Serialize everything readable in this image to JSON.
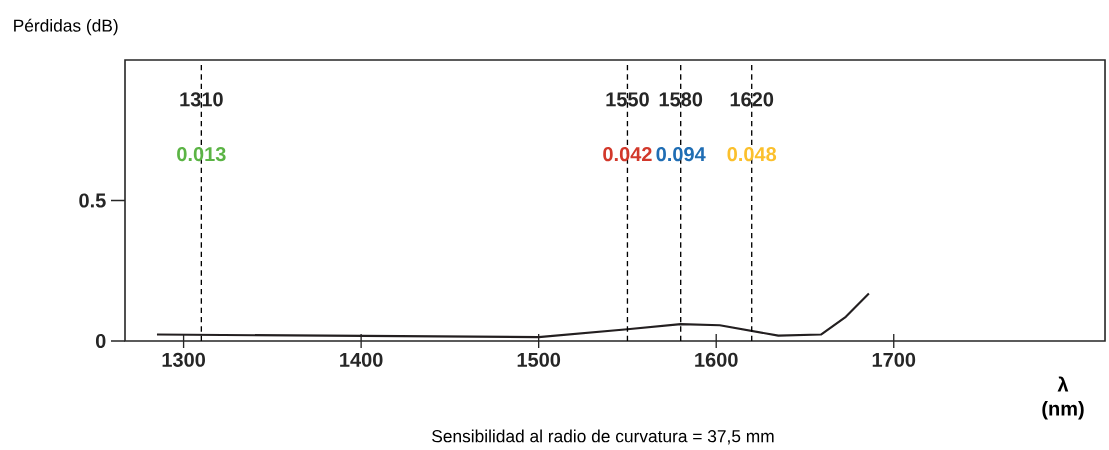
{
  "chart_data": {
    "type": "line",
    "ylabel": "Pérdidas (dB)",
    "xlabel": "λ (nm)",
    "x": [
      1285,
      1500,
      1550,
      1580,
      1602,
      1635,
      1659,
      1673,
      1686
    ],
    "series": [
      {
        "color": "#231f20",
        "values": [
          0.023,
          0.014,
          0.042,
          0.06,
          0.056,
          0.019,
          0.023,
          0.086,
          0.169
        ]
      }
    ],
    "xlim": [
      1267,
      1819
    ],
    "ylim": [
      0,
      1
    ],
    "xticks": [
      1300,
      1400,
      1500,
      1600,
      1700
    ],
    "yticks": [
      0,
      0.5
    ],
    "marker": "none",
    "line_style": "solid",
    "ref_lines": [
      {
        "axis": "x",
        "value": 1310,
        "label": "1310",
        "line_style": "dashed"
      },
      {
        "axis": "x",
        "value": 1550,
        "label": "1550",
        "line_style": "dashed"
      },
      {
        "axis": "x",
        "value": 1580,
        "label": "1580",
        "line_style": "dashed"
      },
      {
        "axis": "x",
        "value": 1620,
        "label": "1620",
        "line_style": "dashed"
      }
    ],
    "annotations": [
      {
        "text": "0.013",
        "x": 1310
      },
      {
        "text": "0.042",
        "x": 1550
      },
      {
        "text": "0.094",
        "x": 1580
      },
      {
        "text": "0.048",
        "x": 1620
      },
      "Sensibilidad al radio de curvatura = 37,5 mm"
    ]
  }
}
